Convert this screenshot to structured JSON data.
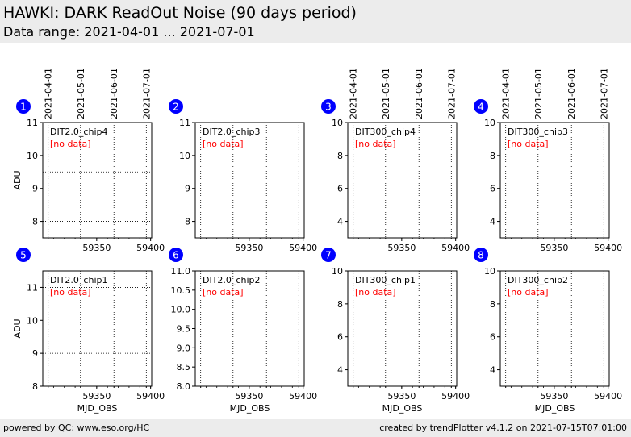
{
  "header": {
    "title": "HAWKI: DARK ReadOut Noise (90 days period)",
    "subtitle": "Data range: 2021-04-01 ... 2021-07-01"
  },
  "footer": {
    "left": "powered by QC: www.eso.org/HC",
    "right": "created by trendPlotter v4.1.2 on 2021-07-15T07:01:00"
  },
  "chart_data": {
    "type": "scatter",
    "x_date_ticks": [
      "2021-04-01",
      "2021-05-01",
      "2021-06-01",
      "2021-07-01"
    ],
    "x_date_tick_mjd": [
      59305,
      59335,
      59366,
      59396
    ],
    "x_ticks": [
      59350,
      59400
    ],
    "xlim": [
      59300,
      59401
    ],
    "xlabel": "MJD_OBS",
    "ylabel": "ADU",
    "no_data_label": "[no data]",
    "badge_color": "#0000ff",
    "no_data_color": "#ff0000",
    "panels": [
      {
        "index": "1",
        "name": "DIT2.0_chip4",
        "ylim": [
          7.5,
          11
        ],
        "yticks": [
          8,
          9,
          10,
          11
        ],
        "ydotted": [
          8,
          9.5
        ],
        "show_ylabel": true,
        "show_xlabel": false,
        "top_dates": true,
        "points": []
      },
      {
        "index": "2",
        "name": "DIT2.0_chip3",
        "ylim": [
          7.5,
          11
        ],
        "yticks": [
          8,
          9,
          10,
          11
        ],
        "ydotted": [],
        "show_ylabel": false,
        "show_xlabel": false,
        "top_dates": false,
        "points": []
      },
      {
        "index": "3",
        "name": "DIT300_chip4",
        "ylim": [
          3,
          10
        ],
        "yticks": [
          4,
          6,
          8,
          10
        ],
        "ydotted": [],
        "show_ylabel": false,
        "show_xlabel": false,
        "top_dates": true,
        "points": []
      },
      {
        "index": "4",
        "name": "DIT300_chip3",
        "ylim": [
          3,
          10
        ],
        "yticks": [
          4,
          6,
          8,
          10
        ],
        "ydotted": [],
        "show_ylabel": false,
        "show_xlabel": false,
        "top_dates": true,
        "points": []
      },
      {
        "index": "5",
        "name": "DIT2.0_chip1",
        "ylim": [
          8,
          11.5
        ],
        "yticks": [
          8,
          9,
          10,
          11
        ],
        "ydotted": [
          9,
          11
        ],
        "show_ylabel": true,
        "show_xlabel": true,
        "top_dates": false,
        "points": []
      },
      {
        "index": "6",
        "name": "DIT2.0_chip2",
        "ylim": [
          8,
          11
        ],
        "yticks": [
          8.0,
          8.5,
          9.0,
          9.5,
          10.0,
          10.5,
          11.0
        ],
        "ytick_labels": [
          "8.0",
          "8.5",
          "9.0",
          "9.5",
          "10.0",
          "10.5",
          "11.0"
        ],
        "ydotted": [],
        "show_ylabel": false,
        "show_xlabel": true,
        "top_dates": false,
        "points": []
      },
      {
        "index": "7",
        "name": "DIT300_chip1",
        "ylim": [
          3,
          10
        ],
        "yticks": [
          4,
          6,
          8,
          10
        ],
        "ydotted": [],
        "show_ylabel": false,
        "show_xlabel": true,
        "top_dates": false,
        "points": []
      },
      {
        "index": "8",
        "name": "DIT300_chip2",
        "ylim": [
          3,
          10
        ],
        "yticks": [
          4,
          6,
          8,
          10
        ],
        "ydotted": [],
        "show_ylabel": false,
        "show_xlabel": true,
        "top_dates": false,
        "points": []
      }
    ]
  }
}
